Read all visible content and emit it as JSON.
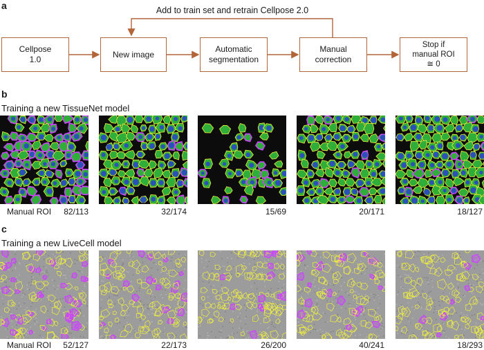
{
  "panels": {
    "a": {
      "letter": "a",
      "loop_label": "Add to train set and retrain Cellpose 2.0",
      "steps": [
        "Cellpose\n1.0",
        "New image",
        "Automatic\nsegmentation",
        "Manual\ncorrection",
        "Stop if\nmanual ROI\n≅ 0"
      ]
    },
    "b": {
      "letter": "b",
      "title": "Training a new TissueNet model",
      "manual_label": "Manual ROI",
      "counts": [
        "82/113",
        "32/174",
        "15/69",
        "20/171",
        "18/127"
      ]
    },
    "c": {
      "letter": "c",
      "title": "Training a new LiveCell model",
      "manual_label": "Manual ROI",
      "counts": [
        "52/127",
        "22/173",
        "26/200",
        "40/241",
        "18/293"
      ]
    }
  },
  "colors": {
    "arrow": "#b3653a",
    "tissue_bg": "#0c0c0c",
    "tissue_cell": "#2fae3a",
    "tissue_nucleus": "#2a3fd0",
    "outline_auto": "#f2f23a",
    "outline_manual": "#cc44ff",
    "livecell_bg": "#9c9c9c"
  }
}
